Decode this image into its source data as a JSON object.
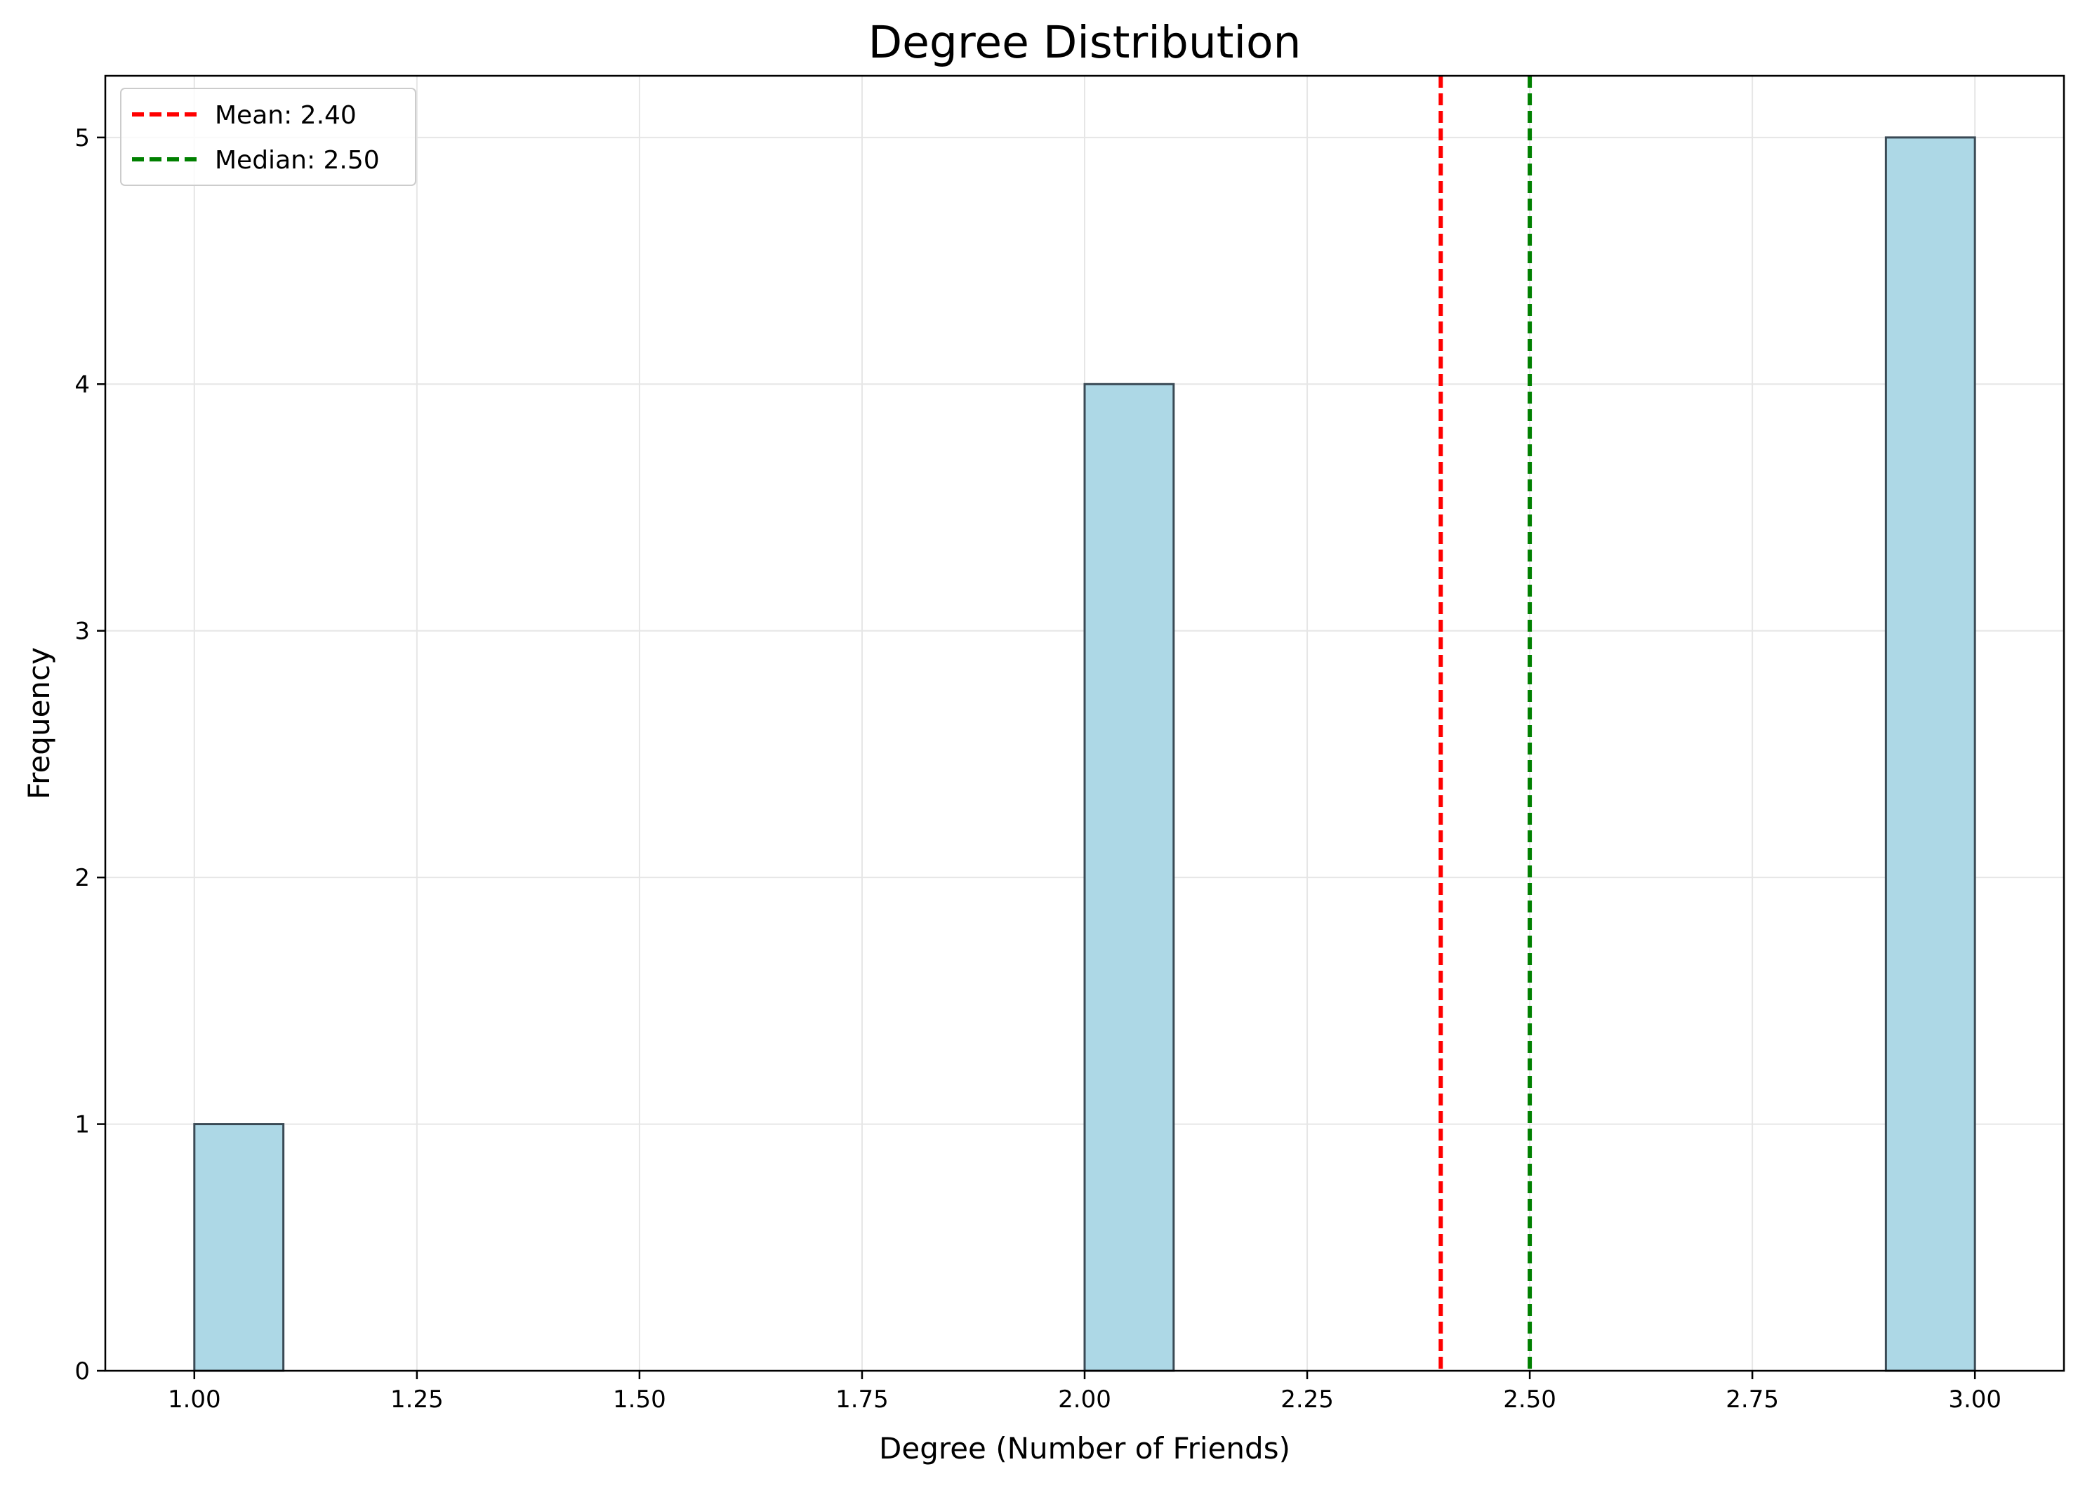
{
  "chart_data": {
    "type": "bar",
    "title": "Degree Distribution",
    "xlabel": "Degree (Number of Friends)",
    "ylabel": "Frequency",
    "xlim": [
      0.9,
      3.1
    ],
    "ylim": [
      0,
      5.25
    ],
    "x_ticks": [
      "1.00",
      "1.25",
      "1.50",
      "1.75",
      "2.00",
      "2.25",
      "2.50",
      "2.75",
      "3.00"
    ],
    "x_tick_values": [
      1.0,
      1.25,
      1.5,
      1.75,
      2.0,
      2.25,
      2.5,
      2.75,
      3.0
    ],
    "y_ticks": [
      "0",
      "1",
      "2",
      "3",
      "4",
      "5"
    ],
    "y_tick_values": [
      0,
      1,
      2,
      3,
      4,
      5
    ],
    "bins": [
      {
        "start": 1.0,
        "end": 1.1,
        "count": 1
      },
      {
        "start": 2.0,
        "end": 2.1,
        "count": 4
      },
      {
        "start": 2.9,
        "end": 3.0,
        "count": 5
      }
    ],
    "reference_lines": [
      {
        "label": "Mean: 2.40",
        "value": 2.4,
        "color": "#ff0000",
        "style": "dashed"
      },
      {
        "label": "Median: 2.50",
        "value": 2.5,
        "color": "#008000",
        "style": "dashed"
      }
    ],
    "bar_color": "#add8e6",
    "bar_edge_color": "#3a4a55",
    "grid": true,
    "legend_position": "top-left"
  }
}
